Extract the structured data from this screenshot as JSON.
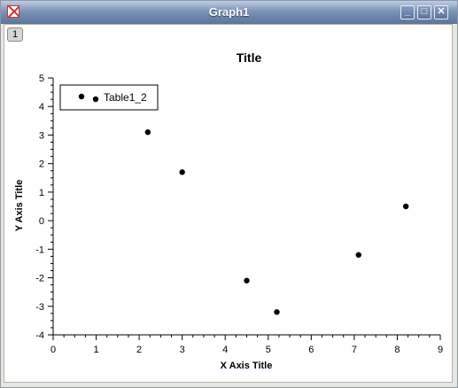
{
  "window": {
    "title": "Graph1",
    "layer_tab": "1"
  },
  "chart_data": {
    "type": "scatter",
    "title": "Title",
    "xlabel": "X Axis Title",
    "ylabel": "Y Axis Title",
    "xlim": [
      0,
      9
    ],
    "ylim": [
      -4,
      5
    ],
    "x_ticks": [
      0,
      1,
      2,
      3,
      4,
      5,
      6,
      7,
      8,
      9
    ],
    "y_ticks": [
      -4,
      -3,
      -2,
      -1,
      0,
      1,
      2,
      3,
      4,
      5
    ],
    "legend_position": "top-left",
    "grid": false,
    "series": [
      {
        "name": "Table1_2",
        "color": "#000000",
        "x": [
          1,
          2.2,
          3,
          4.5,
          5.2,
          7.1,
          8.2
        ],
        "y": [
          4.2,
          3.1,
          1.7,
          -2.1,
          -3.2,
          -1.2,
          0.5
        ]
      }
    ]
  }
}
